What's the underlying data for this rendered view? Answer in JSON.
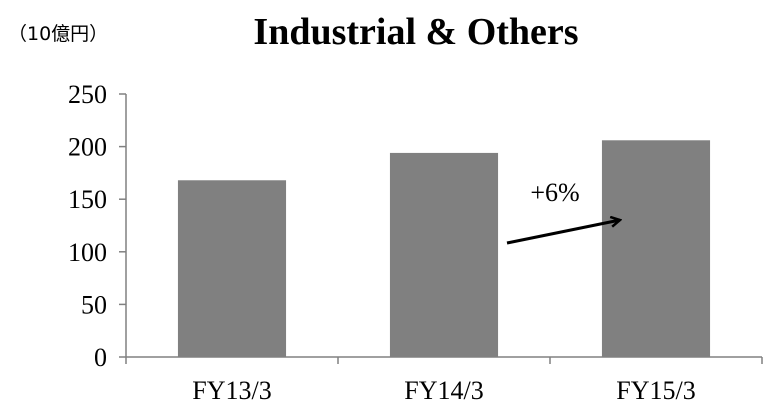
{
  "chart_data": {
    "type": "bar",
    "title": "Industrial & Others",
    "unit_label": "（10億円）",
    "categories": [
      "FY13/3",
      "FY14/3",
      "FY15/3"
    ],
    "values": [
      168,
      194,
      206
    ],
    "ylim": [
      0,
      250
    ],
    "yticks": [
      "0",
      "50",
      "100",
      "150",
      "200",
      "250"
    ],
    "xlabel": "",
    "ylabel": "",
    "grid": false,
    "legend": "none",
    "bar_color": "#808080",
    "annotation": {
      "text": "+6%",
      "type": "arrow",
      "from_category": "FY14/3",
      "to_category": "FY15/3"
    }
  }
}
